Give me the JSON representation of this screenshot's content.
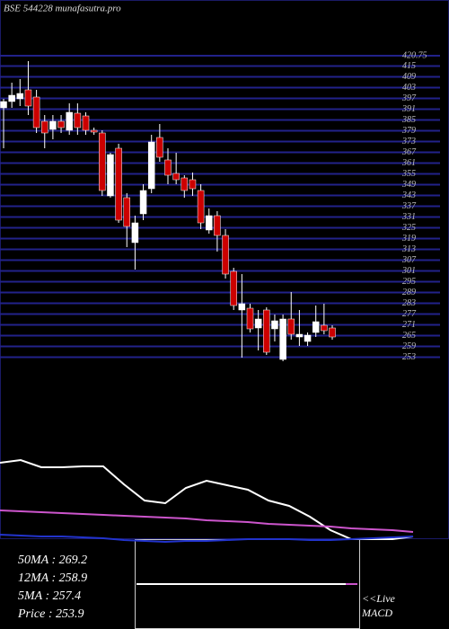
{
  "chart_data": [
    {
      "type": "candlestick",
      "title": "BSE 544228 munafasutra.pro",
      "categories": [
        null,
        null,
        null,
        null,
        null,
        null,
        null,
        null,
        null,
        null,
        null,
        null,
        null,
        null,
        null,
        null,
        null,
        null,
        null,
        null,
        null,
        null,
        null,
        null,
        null,
        null,
        null,
        null,
        null,
        null,
        null,
        null,
        null,
        null,
        null,
        null,
        null,
        null,
        null,
        null,
        null
      ],
      "open": [
        391.75,
        395.25,
        396.75,
        401.75,
        397.75,
        384.25,
        379.75,
        384.25,
        379.25,
        388.75,
        387.25,
        379.25,
        377.75,
        342.75,
        369.25,
        341.75,
        316.75,
        332.75,
        346.75,
        375.25,
        362.75,
        355.25,
        352.75,
        351.75,
        345.75,
        323.75,
        331.75,
        320.75,
        300.75,
        279.25,
        280.25,
        269.25,
        279.25,
        268.75,
        251.75,
        274.25,
        264.25,
        261.75,
        266.75,
        270.75,
        269.25
      ],
      "high": [
        396.75,
        405.75,
        407.75,
        417.75,
        401.75,
        387.75,
        387.75,
        387.75,
        394.25,
        394.25,
        389.25,
        380.75,
        379.25,
        366.75,
        371.75,
        344.25,
        331.75,
        349.25,
        376.75,
        382.75,
        369.25,
        366.75,
        354.25,
        355.75,
        349.25,
        335.75,
        334.25,
        324.25,
        302.75,
        299.25,
        282.75,
        279.25,
        280.75,
        276.75,
        276.75,
        289.25,
        279.25,
        266.75,
        281.75,
        282.75,
        270.75
      ],
      "low": [
        369.25,
        391.75,
        392.75,
        387.75,
        377.75,
        369.25,
        374.25,
        377.75,
        376.75,
        376.75,
        376.75,
        376.75,
        342.75,
        341.75,
        327.75,
        314.25,
        301.75,
        329.25,
        344.25,
        361.75,
        349.25,
        349.25,
        341.75,
        342.75,
        324.25,
        321.75,
        311.75,
        296.75,
        279.25,
        252.75,
        266.75,
        256.75,
        254.25,
        261.75,
        250.75,
        262.75,
        259.25,
        259.25,
        264.25,
        265.75,
        262.75
      ],
      "close": [
        395.25,
        398.75,
        399.75,
        392.75,
        380.75,
        377.75,
        384.25,
        380.75,
        389.25,
        380.75,
        379.25,
        378.25,
        345.75,
        365.75,
        329.25,
        325.75,
        327.75,
        345.75,
        372.75,
        364.25,
        354.25,
        351.75,
        345.75,
        346.75,
        327.75,
        331.75,
        320.75,
        299.25,
        281.75,
        282.75,
        268.75,
        274.25,
        255.75,
        273.25,
        274.25,
        265.75,
        265.75,
        265.25,
        272.75,
        267.75,
        264.25
      ],
      "up_color": "#ffffff",
      "down_color": "#cc0000",
      "ylim": [
        250,
        425
      ],
      "yticks": [
        420.75,
        415,
        409,
        403,
        397,
        391,
        385,
        379,
        373,
        367,
        361,
        355,
        349,
        343,
        337,
        331,
        325,
        319,
        313,
        307,
        301,
        295,
        289,
        283,
        277,
        271,
        265,
        259,
        253
      ],
      "grid": true,
      "grid_color": "#22228a"
    },
    {
      "type": "line",
      "categories": [
        null,
        null,
        null,
        null,
        null,
        null,
        null,
        null,
        null,
        null,
        null,
        null,
        null,
        null,
        null,
        null,
        null,
        null,
        null,
        null,
        null
      ],
      "series": [
        {
          "color": "#ffffff",
          "values": [
            90,
            93,
            85,
            85,
            86,
            86,
            66,
            48,
            45,
            62,
            70,
            65,
            60,
            48,
            42,
            30,
            15,
            5,
            5,
            5,
            8
          ]
        },
        {
          "color": "#cc55cc",
          "values": [
            37,
            36,
            35,
            34,
            33,
            32,
            31,
            30,
            29,
            28,
            26,
            25,
            24,
            22,
            21,
            20,
            19,
            17,
            16,
            15,
            13
          ]
        },
        {
          "color": "#2233cc",
          "values": [
            10,
            9,
            8,
            8,
            7,
            6,
            4,
            3,
            2,
            3,
            3,
            4,
            5,
            5,
            5,
            4,
            4,
            5,
            6,
            7,
            8
          ]
        }
      ],
      "ylim": [
        0,
        100
      ],
      "annotations": [
        "50MA : 269.2",
        "12MA : 258.9",
        "5MA : 257.4",
        "Price   : 253.9"
      ]
    }
  ],
  "macd": {
    "link": "<<Live",
    "title": "MACD"
  }
}
